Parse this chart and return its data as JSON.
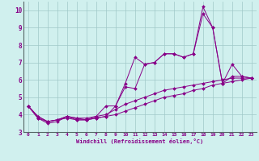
{
  "title": "",
  "xlabel": "Windchill (Refroidissement éolien,°C)",
  "ylabel": "",
  "bg_color": "#d0f0ee",
  "grid_color": "#a0c8c8",
  "line_color": "#880088",
  "x_ticks": [
    0,
    1,
    2,
    3,
    4,
    5,
    6,
    7,
    8,
    9,
    10,
    11,
    12,
    13,
    14,
    15,
    16,
    17,
    18,
    19,
    20,
    21,
    22,
    23
  ],
  "y_ticks": [
    3,
    4,
    5,
    6,
    7,
    8,
    9,
    10
  ],
  "xlim": [
    -0.5,
    23.5
  ],
  "ylim": [
    3,
    10.5
  ],
  "series": [
    {
      "x": [
        0,
        1,
        2,
        3,
        4,
        5,
        6,
        7,
        8,
        9,
        10,
        11,
        12,
        13,
        14,
        15,
        16,
        17,
        18,
        19,
        20,
        21,
        22,
        23
      ],
      "y": [
        4.5,
        3.8,
        3.5,
        3.6,
        3.9,
        3.7,
        3.7,
        3.8,
        3.9,
        4.5,
        5.8,
        7.3,
        6.9,
        7.0,
        7.5,
        7.5,
        7.3,
        7.5,
        10.2,
        9.0,
        5.8,
        6.9,
        6.2,
        6.1
      ]
    },
    {
      "x": [
        0,
        1,
        2,
        3,
        4,
        5,
        6,
        7,
        8,
        9,
        10,
        11,
        12,
        13,
        14,
        15,
        16,
        17,
        18,
        19,
        20,
        21,
        22,
        23
      ],
      "y": [
        4.5,
        3.8,
        3.6,
        3.7,
        3.9,
        3.8,
        3.7,
        3.9,
        4.5,
        4.5,
        5.6,
        5.5,
        6.9,
        7.0,
        7.5,
        7.5,
        7.3,
        7.5,
        9.8,
        9.0,
        5.8,
        6.2,
        6.2,
        6.1
      ]
    },
    {
      "x": [
        0,
        1,
        2,
        3,
        4,
        5,
        6,
        7,
        8,
        9,
        10,
        11,
        12,
        13,
        14,
        15,
        16,
        17,
        18,
        19,
        20,
        21,
        22,
        23
      ],
      "y": [
        4.5,
        3.9,
        3.6,
        3.7,
        3.9,
        3.8,
        3.8,
        3.9,
        4.0,
        4.3,
        4.6,
        4.8,
        5.0,
        5.2,
        5.4,
        5.5,
        5.6,
        5.7,
        5.8,
        5.9,
        6.0,
        6.1,
        6.1,
        6.1
      ]
    },
    {
      "x": [
        0,
        1,
        2,
        3,
        4,
        5,
        6,
        7,
        8,
        9,
        10,
        11,
        12,
        13,
        14,
        15,
        16,
        17,
        18,
        19,
        20,
        21,
        22,
        23
      ],
      "y": [
        4.5,
        3.9,
        3.6,
        3.7,
        3.8,
        3.7,
        3.7,
        3.8,
        3.9,
        4.0,
        4.2,
        4.4,
        4.6,
        4.8,
        5.0,
        5.1,
        5.2,
        5.4,
        5.5,
        5.7,
        5.8,
        5.9,
        6.0,
        6.1
      ]
    }
  ]
}
